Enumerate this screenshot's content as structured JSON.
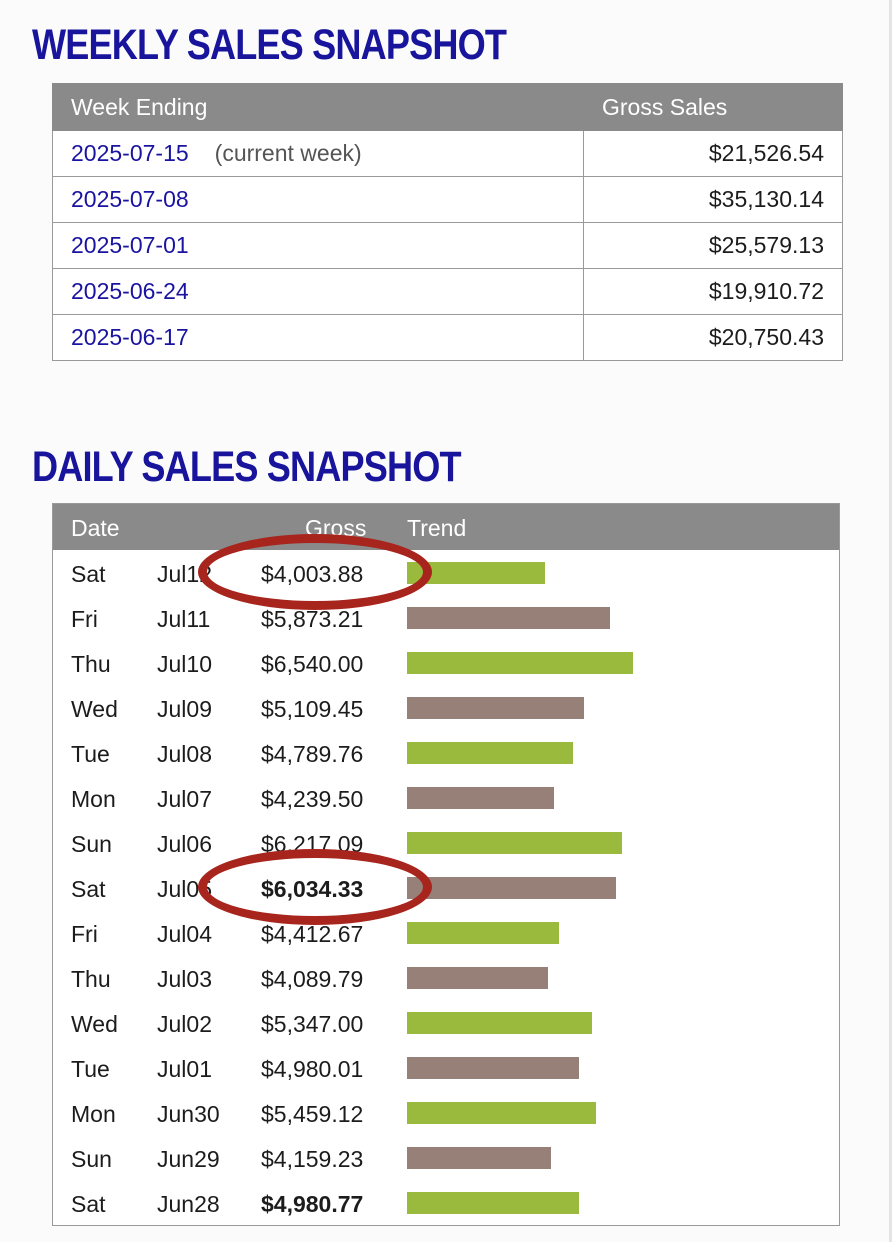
{
  "weekly": {
    "heading": "WEEKLY SALES SNAPSHOT",
    "columns": [
      "Week Ending",
      "Gross Sales"
    ],
    "rows": [
      {
        "week": "2025-07-15",
        "note": "(current week)",
        "gross": "$21,526.54"
      },
      {
        "week": "2025-07-08",
        "note": "",
        "gross": "$35,130.14"
      },
      {
        "week": "2025-07-01",
        "note": "",
        "gross": "$25,579.13"
      },
      {
        "week": "2025-06-24",
        "note": "",
        "gross": "$19,910.72"
      },
      {
        "week": "2025-06-17",
        "note": "",
        "gross": "$20,750.43"
      }
    ]
  },
  "daily": {
    "heading": "DAILY SALES SNAPSHOT",
    "columns": {
      "date": "Date",
      "gross": "Gross",
      "trend": "Trend"
    },
    "colors": {
      "up": "#99ba3c",
      "down": "#968077"
    },
    "rows": [
      {
        "day": "Sat",
        "date": "Jul12",
        "gross": "$4,003.88",
        "value": 4003.88,
        "trend": "up",
        "bold": false
      },
      {
        "day": "Fri",
        "date": "Jul11",
        "gross": "$5,873.21",
        "value": 5873.21,
        "trend": "down",
        "bold": false
      },
      {
        "day": "Thu",
        "date": "Jul10",
        "gross": "$6,540.00",
        "value": 6540.0,
        "trend": "up",
        "bold": false
      },
      {
        "day": "Wed",
        "date": "Jul09",
        "gross": "$5,109.45",
        "value": 5109.45,
        "trend": "down",
        "bold": false
      },
      {
        "day": "Tue",
        "date": "Jul08",
        "gross": "$4,789.76",
        "value": 4789.76,
        "trend": "up",
        "bold": false
      },
      {
        "day": "Mon",
        "date": "Jul07",
        "gross": "$4,239.50",
        "value": 4239.5,
        "trend": "down",
        "bold": false
      },
      {
        "day": "Sun",
        "date": "Jul06",
        "gross": "$6,217.09",
        "value": 6217.09,
        "trend": "up",
        "bold": false
      },
      {
        "day": "Sat",
        "date": "Jul05",
        "gross": "$6,034.33",
        "value": 6034.33,
        "trend": "down",
        "bold": true
      },
      {
        "day": "Fri",
        "date": "Jul04",
        "gross": "$4,412.67",
        "value": 4412.67,
        "trend": "up",
        "bold": false
      },
      {
        "day": "Thu",
        "date": "Jul03",
        "gross": "$4,089.79",
        "value": 4089.79,
        "trend": "down",
        "bold": false
      },
      {
        "day": "Wed",
        "date": "Jul02",
        "gross": "$5,347.00",
        "value": 5347.0,
        "trend": "up",
        "bold": false
      },
      {
        "day": "Tue",
        "date": "Jul01",
        "gross": "$4,980.01",
        "value": 4980.01,
        "trend": "down",
        "bold": false
      },
      {
        "day": "Mon",
        "date": "Jun30",
        "gross": "$5,459.12",
        "value": 5459.12,
        "trend": "up",
        "bold": false
      },
      {
        "day": "Sun",
        "date": "Jun29",
        "gross": "$4,159.23",
        "value": 4159.23,
        "trend": "down",
        "bold": false
      },
      {
        "day": "Sat",
        "date": "Jun28",
        "gross": "$4,980.77",
        "value": 4980.77,
        "trend": "up",
        "bold": true
      }
    ]
  },
  "annotations": {
    "highlight_color": "#a8251d",
    "circled_rows": [
      0,
      7
    ]
  }
}
